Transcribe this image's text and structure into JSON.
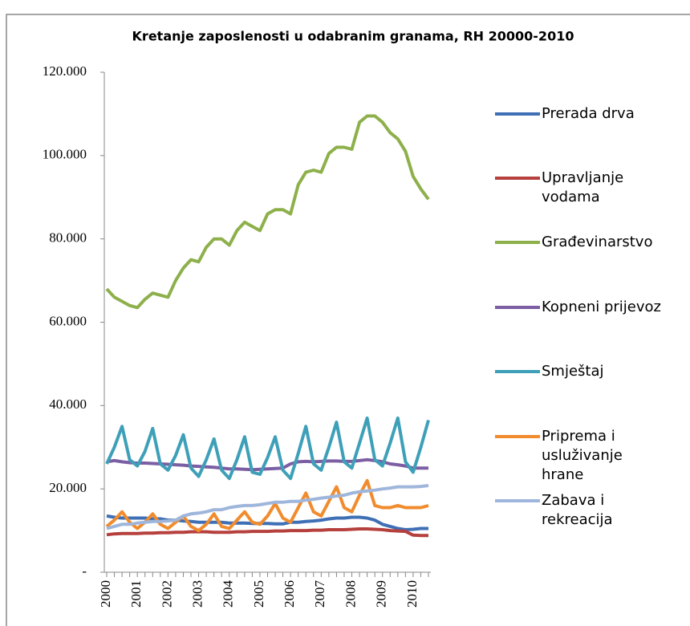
{
  "chart_data": {
    "type": "line",
    "title": "Kretanje zaposlenosti u odabranim granama, RH 20000-2010",
    "categories": [
      "2000",
      null,
      null,
      null,
      "2001",
      null,
      null,
      null,
      "2002",
      null,
      null,
      null,
      "2003",
      null,
      null,
      null,
      "2004",
      null,
      null,
      null,
      "2005",
      null,
      null,
      null,
      "2006",
      null,
      null,
      null,
      "2007",
      null,
      null,
      null,
      "2008",
      null,
      null,
      null,
      "2009",
      null,
      null,
      null,
      "2010",
      null,
      null
    ],
    "ylim": [
      0,
      120000
    ],
    "yticks": [
      {
        "value": 0,
        "label": "-"
      },
      {
        "value": 20000,
        "label": "20.000"
      },
      {
        "value": 40000,
        "label": "40.000"
      },
      {
        "value": 60000,
        "label": "60.000"
      },
      {
        "value": 80000,
        "label": "80.000"
      },
      {
        "value": 100000,
        "label": "100.000"
      },
      {
        "value": 120000,
        "label": "120.000"
      }
    ],
    "grid": false,
    "legend": "right",
    "series": [
      {
        "name": "Prerada drva",
        "color": "#3f6fb5",
        "values": [
          13500,
          13200,
          13000,
          13000,
          13000,
          13000,
          12800,
          12800,
          12500,
          12500,
          12300,
          12200,
          12000,
          12000,
          12000,
          12000,
          11800,
          11800,
          11800,
          11700,
          11700,
          11700,
          11600,
          11600,
          12000,
          12000,
          12200,
          12300,
          12500,
          12800,
          13000,
          13000,
          13200,
          13200,
          13000,
          12500,
          11500,
          11000,
          10500,
          10200,
          10300,
          10500,
          10500
        ]
      },
      {
        "name": "Upravljanje vodama",
        "color": "#b5403d",
        "values": [
          9000,
          9200,
          9300,
          9300,
          9300,
          9400,
          9400,
          9500,
          9500,
          9600,
          9600,
          9700,
          9700,
          9700,
          9600,
          9600,
          9600,
          9700,
          9700,
          9800,
          9800,
          9800,
          9900,
          9900,
          10000,
          10000,
          10000,
          10100,
          10100,
          10200,
          10200,
          10200,
          10300,
          10400,
          10400,
          10300,
          10200,
          10000,
          9900,
          9800,
          8900,
          8800,
          8800
        ]
      },
      {
        "name": "Građevinarstvo",
        "color": "#8db04b",
        "values": [
          68000,
          66000,
          65000,
          64000,
          63500,
          65500,
          67000,
          66500,
          66000,
          70000,
          73000,
          75000,
          74500,
          78000,
          80000,
          80000,
          78500,
          82000,
          84000,
          83000,
          82000,
          86000,
          87000,
          87000,
          86000,
          93000,
          96000,
          96500,
          96000,
          100500,
          102000,
          102000,
          101500,
          108000,
          109500,
          109500,
          108000,
          105500,
          104000,
          101000,
          95000,
          92000,
          89500
        ]
      },
      {
        "name": "Kopneni prijevoz",
        "color": "#7b5ea3",
        "values": [
          26500,
          26800,
          26500,
          26300,
          26200,
          26200,
          26100,
          26000,
          25900,
          25800,
          25700,
          25500,
          25400,
          25300,
          25200,
          25000,
          24800,
          24800,
          24700,
          24600,
          24700,
          24800,
          24900,
          25000,
          26000,
          26500,
          26600,
          26500,
          26600,
          26700,
          26700,
          26600,
          26600,
          26800,
          27000,
          26800,
          26500,
          26000,
          25800,
          25500,
          25000,
          25000,
          25000
        ]
      },
      {
        "name": "Smještaj",
        "color": "#3ea0b8",
        "values": [
          26000,
          30000,
          35000,
          27000,
          25500,
          29000,
          34500,
          26000,
          24500,
          28000,
          33000,
          25000,
          23000,
          27000,
          32000,
          24500,
          22500,
          27000,
          32500,
          24000,
          23500,
          27500,
          32500,
          24500,
          22500,
          28500,
          35000,
          26000,
          24500,
          30000,
          36000,
          26500,
          25000,
          31000,
          37000,
          27000,
          25500,
          31000,
          37000,
          26500,
          24000,
          30000,
          36500
        ]
      },
      {
        "name": "Priprema i usluživanje hrane",
        "color": "#f08c2e",
        "values": [
          11000,
          12500,
          14500,
          12000,
          10500,
          12000,
          14000,
          11500,
          10500,
          12000,
          13500,
          11000,
          10000,
          11500,
          14000,
          11000,
          10500,
          12500,
          14500,
          12000,
          11500,
          13500,
          16500,
          13000,
          12000,
          15500,
          19000,
          14500,
          13500,
          17000,
          20500,
          15500,
          14500,
          18500,
          22000,
          16000,
          15500,
          15500,
          16000,
          15500,
          15500,
          15500,
          16000
        ]
      },
      {
        "name": "Zabava i rekreacija",
        "color": "#9fb6dc",
        "values": [
          10500,
          11000,
          11500,
          11500,
          11800,
          12000,
          12200,
          12200,
          12300,
          12500,
          13500,
          14000,
          14200,
          14500,
          15000,
          15000,
          15500,
          15800,
          16000,
          16000,
          16200,
          16500,
          16800,
          16800,
          17000,
          17000,
          17300,
          17500,
          17800,
          18000,
          18300,
          18500,
          19000,
          19300,
          19500,
          19700,
          20000,
          20200,
          20500,
          20500,
          20500,
          20600,
          20800
        ]
      }
    ]
  }
}
